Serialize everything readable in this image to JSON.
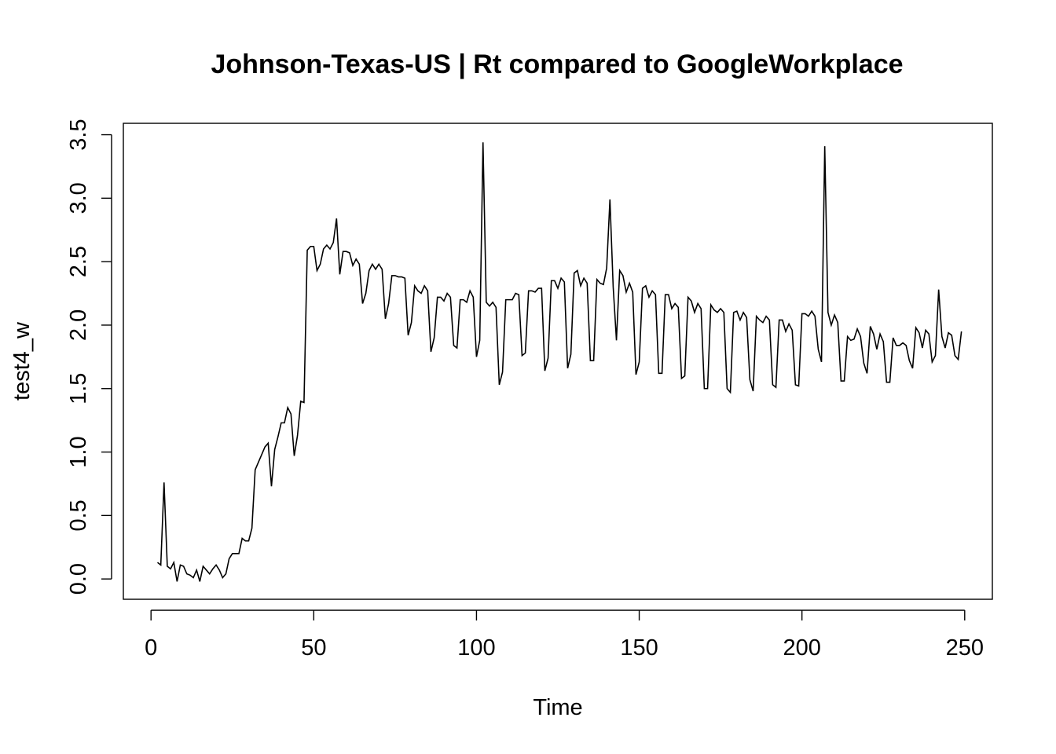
{
  "chart_data": {
    "type": "line",
    "title": "Johnson-Texas-US | Rt compared to GoogleWorkplace",
    "xlabel": "Time",
    "ylabel": "test4_w",
    "xlim": [
      -8.5,
      258.5
    ],
    "ylim": [
      -0.16,
      3.59
    ],
    "x_ticks": [
      0,
      50,
      100,
      150,
      200,
      250
    ],
    "x_tick_labels": [
      "0",
      "50",
      "100",
      "150",
      "200",
      "250"
    ],
    "y_ticks": [
      0.0,
      0.5,
      1.0,
      1.5,
      2.0,
      2.5,
      3.0,
      3.5
    ],
    "y_tick_labels": [
      "0.0",
      "0.5",
      "1.0",
      "1.5",
      "2.0",
      "2.5",
      "3.0",
      "3.5"
    ],
    "grid": false,
    "legend": "none",
    "line_color": "#000000",
    "series": [
      {
        "x_start": 2,
        "x_step": 1,
        "values": [
          0.13,
          0.11,
          0.76,
          0.1,
          0.08,
          0.13,
          -0.02,
          0.11,
          0.1,
          0.04,
          0.03,
          0.01,
          0.07,
          -0.02,
          0.1,
          0.07,
          0.04,
          0.08,
          0.11,
          0.07,
          0.01,
          0.04,
          0.16,
          0.2,
          0.2,
          0.2,
          0.32,
          0.3,
          0.3,
          0.4,
          0.86,
          0.92,
          0.98,
          1.04,
          1.07,
          0.73,
          1.02,
          1.12,
          1.23,
          1.23,
          1.35,
          1.3,
          0.97,
          1.13,
          1.4,
          1.39,
          2.59,
          2.62,
          2.62,
          2.43,
          2.48,
          2.6,
          2.63,
          2.6,
          2.65,
          2.84,
          2.4,
          2.58,
          2.58,
          2.57,
          2.47,
          2.52,
          2.48,
          2.17,
          2.25,
          2.43,
          2.48,
          2.44,
          2.48,
          2.44,
          2.05,
          2.17,
          2.39,
          2.39,
          2.38,
          2.38,
          2.37,
          1.92,
          2.02,
          2.31,
          2.27,
          2.25,
          2.31,
          2.27,
          1.79,
          1.9,
          2.22,
          2.22,
          2.19,
          2.25,
          2.22,
          1.84,
          1.82,
          2.2,
          2.2,
          2.18,
          2.27,
          2.22,
          1.75,
          1.88,
          3.44,
          2.18,
          2.15,
          2.18,
          2.14,
          1.53,
          1.63,
          2.2,
          2.2,
          2.2,
          2.25,
          2.24,
          1.76,
          1.78,
          2.27,
          2.27,
          2.26,
          2.29,
          2.29,
          1.64,
          1.74,
          2.35,
          2.35,
          2.29,
          2.37,
          2.34,
          1.66,
          1.77,
          2.41,
          2.43,
          2.31,
          2.37,
          2.33,
          1.72,
          1.72,
          2.36,
          2.33,
          2.32,
          2.45,
          2.99,
          2.3,
          1.88,
          2.43,
          2.39,
          2.26,
          2.33,
          2.26,
          1.61,
          1.71,
          2.29,
          2.31,
          2.22,
          2.27,
          2.24,
          1.62,
          1.62,
          2.24,
          2.24,
          2.13,
          2.17,
          2.14,
          1.58,
          1.6,
          2.22,
          2.19,
          2.1,
          2.17,
          2.13,
          1.5,
          1.5,
          2.16,
          2.12,
          2.1,
          2.13,
          2.1,
          1.5,
          1.47,
          2.1,
          2.11,
          2.04,
          2.1,
          2.06,
          1.57,
          1.48,
          2.07,
          2.04,
          2.02,
          2.07,
          2.04,
          1.53,
          1.51,
          2.04,
          2.04,
          1.95,
          2.01,
          1.96,
          1.53,
          1.52,
          2.09,
          2.09,
          2.07,
          2.11,
          2.07,
          1.81,
          1.71,
          3.41,
          2.1,
          2.0,
          2.08,
          2.02,
          1.56,
          1.56,
          1.91,
          1.88,
          1.89,
          1.97,
          1.91,
          1.7,
          1.62,
          1.99,
          1.93,
          1.81,
          1.93,
          1.87,
          1.55,
          1.55,
          1.9,
          1.84,
          1.84,
          1.86,
          1.84,
          1.72,
          1.66,
          1.98,
          1.94,
          1.82,
          1.96,
          1.93,
          1.71,
          1.76,
          2.28,
          1.91,
          1.82,
          1.94,
          1.92,
          1.76,
          1.73,
          1.95
        ]
      }
    ]
  }
}
